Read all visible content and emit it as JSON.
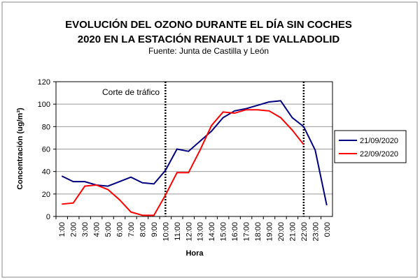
{
  "chart_data": {
    "type": "line",
    "title": [
      "EVOLUCIÓN DEL OZONO DURANTE EL DÍA SIN COCHES",
      "2020 EN LA ESTACIÓN RENAULT 1 DE VALLADOLID"
    ],
    "subtitle": "Fuente: Junta de Castilla y León",
    "xlabel": "Hora",
    "ylabel": "Concentración (ug/m³)",
    "annotation": "Corte de tráfico",
    "vlines": [
      "10:00",
      "22:00"
    ],
    "categories": [
      "1:00",
      "2:00",
      "3:00",
      "4:00",
      "5:00",
      "6:00",
      "7:00",
      "8:00",
      "9:00",
      "10:00",
      "11:00",
      "12:00",
      "13:00",
      "14:00",
      "15:00",
      "16:00",
      "17:00",
      "18:00",
      "19:00",
      "20:00",
      "21:00",
      "22:00",
      "23:00",
      "0:00"
    ],
    "series": [
      {
        "name": "21/09/2020",
        "color": "#000080",
        "values": [
          36,
          31,
          31,
          28,
          27,
          31,
          35,
          30,
          29,
          41,
          60,
          58,
          67,
          76,
          88,
          94,
          96,
          99,
          102,
          103,
          88,
          80,
          59,
          10
        ]
      },
      {
        "name": "22/09/2020",
        "color": "#ff0000",
        "values": [
          11,
          12,
          27,
          28,
          24,
          15,
          4,
          1,
          1,
          19,
          39,
          39,
          59,
          81,
          93,
          92,
          95,
          95,
          94,
          88,
          77,
          64,
          null,
          null
        ]
      }
    ],
    "ylim": [
      0,
      120
    ],
    "yticks": [
      0,
      20,
      40,
      60,
      80,
      100,
      120
    ],
    "grid": true,
    "legend": "right"
  }
}
